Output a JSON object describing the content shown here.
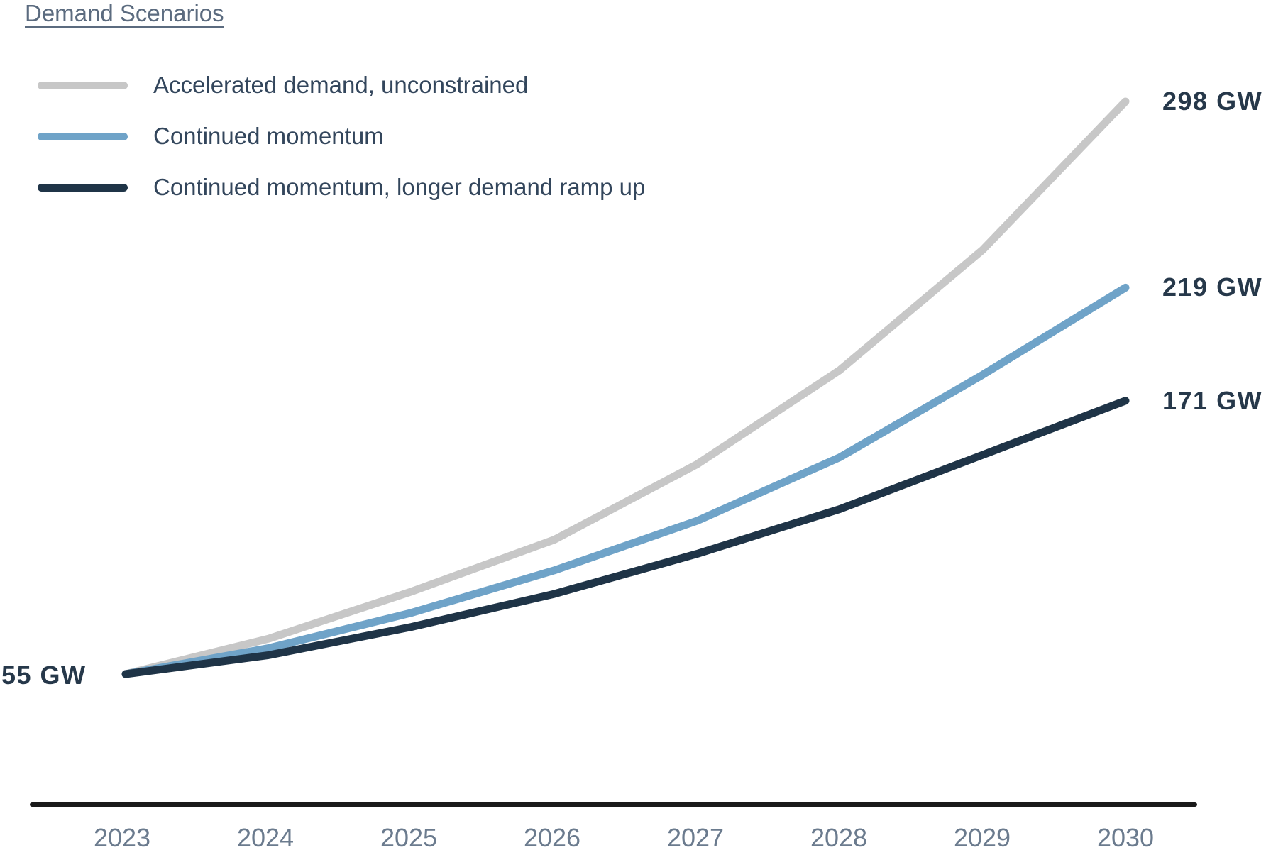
{
  "chart_data": {
    "type": "line",
    "title": "Demand Scenarios",
    "x_labels": [
      "2023",
      "2024",
      "2025",
      "2026",
      "2027",
      "2028",
      "2029",
      "2030"
    ],
    "series": [
      {
        "name": "Accelerated demand, unconstrained",
        "color": "#c7c7c7",
        "values": [
          55,
          70,
          90,
          112,
          144,
          184,
          235,
          298
        ],
        "end_label": "298 GW"
      },
      {
        "name": "Continued momentum",
        "color": "#6fa3c8",
        "values": [
          55,
          66,
          81,
          99,
          120,
          147,
          182,
          219
        ],
        "end_label": "219 GW"
      },
      {
        "name": "Continued momentum, longer demand ramp up",
        "color": "#1f3447",
        "values": [
          55,
          63,
          75,
          89,
          106,
          125,
          148,
          171
        ],
        "end_label": "171 GW"
      }
    ],
    "start_label": "55 GW",
    "unit": "GW",
    "ylim": [
      0,
      320
    ],
    "grid": false,
    "legend_position": "top-left",
    "axis_color": "#1a1a1a",
    "value_label_color": "#26384a",
    "tick_label_color": "#6b7b8e",
    "title_color": "#5b6b7f"
  }
}
